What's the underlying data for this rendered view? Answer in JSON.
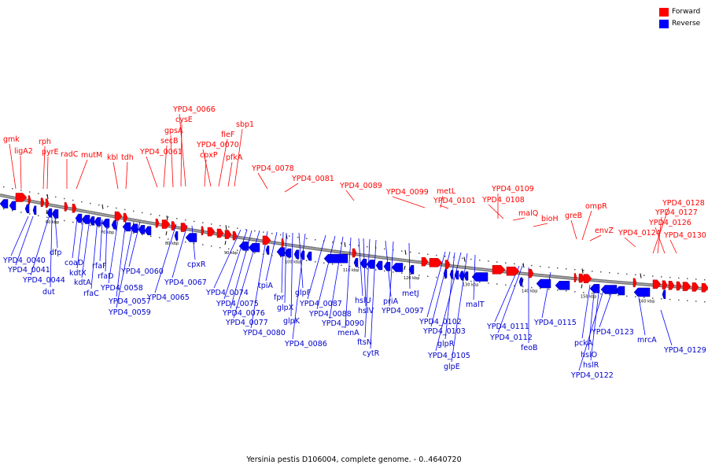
{
  "legend": {
    "forward_label": "Forward",
    "reverse_label": "Reverse",
    "forward_color": "#ff0000",
    "reverse_color": "#0000ff"
  },
  "caption": "Yersinia pestis D106004, complete genome. - 0..4640720",
  "ticks": [
    "60 kbp",
    "70 kbp",
    "80 kbp",
    "90 kbp",
    "100 kbp",
    "110 kbp",
    "120 kbp",
    "130 kbp",
    "140 kbp",
    "150 kbp",
    "160 kbp"
  ],
  "forward_labels": [
    "gmk",
    "ligA2",
    "rph",
    "pyrE",
    "radC",
    "mutM",
    "kbl",
    "tdh",
    "YPD4_0061",
    "secB",
    "gpsA",
    "cysE",
    "YPD4_0066",
    "cpxP",
    "YPD4_0070",
    "fieF",
    "pfkA",
    "sbp1",
    "YPD4_0078",
    "YPD4_0081",
    "YPD4_0089",
    "YPD4_0099",
    "metL",
    "YPD4_0101",
    "YPD4_0109",
    "YPD4_0108",
    "malQ",
    "bioH",
    "greB",
    "ompR",
    "envZ",
    "YPD4_0124",
    "YPD4_0128",
    "YPD4_0127",
    "YPD4_0126",
    "YPD4_0130"
  ],
  "reverse_labels": [
    "YPD4_0040",
    "YPD4_0041",
    "YPD4_0044",
    "dut",
    "dfp",
    "coaD",
    "kdtX",
    "kdtA",
    "rfaC",
    "rfaF",
    "rfaD",
    "YPD4_0058",
    "YPD4_0057",
    "YPD4_0059",
    "YPD4_0060",
    "YPD4_0065",
    "YPD4_0067",
    "cpxR",
    "YPD4_0074",
    "YPD4_0075",
    "YPD4_0076",
    "YPD4_0077",
    "YPD4_0080",
    "tpiA",
    "fpr",
    "glpX",
    "glpK",
    "glpF",
    "YPD4_0086",
    "YPD4_0087",
    "YPD4_0088",
    "YPD4_0090",
    "menA",
    "hslU",
    "hslV",
    "ftsN",
    "cytR",
    "priA",
    "YPD4_0097",
    "metJ",
    "YPD4_0102",
    "YPD4_0103",
    "glpR",
    "YPD4_0105",
    "glpE",
    "malT",
    "YPD4_0111",
    "YPD4_0112",
    "feoB",
    "YPD4_0115",
    "pckA",
    "hslO",
    "hslR",
    "YPD4_0122",
    "YPD4_0123",
    "mrcA",
    "YPD4_0129"
  ]
}
